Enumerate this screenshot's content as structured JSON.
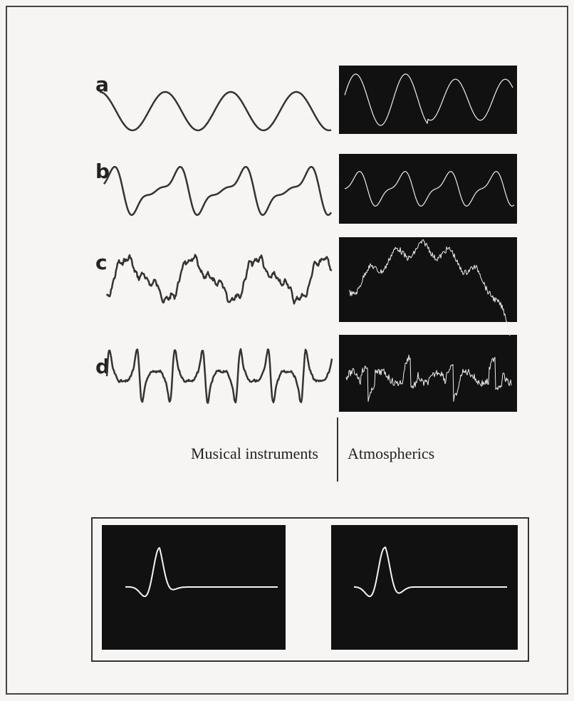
{
  "rows": [
    {
      "label": "a"
    },
    {
      "label": "b"
    },
    {
      "label": "c"
    },
    {
      "label": "d"
    }
  ],
  "captions": {
    "left": "Musical instruments",
    "right": "Atmospherics"
  }
}
